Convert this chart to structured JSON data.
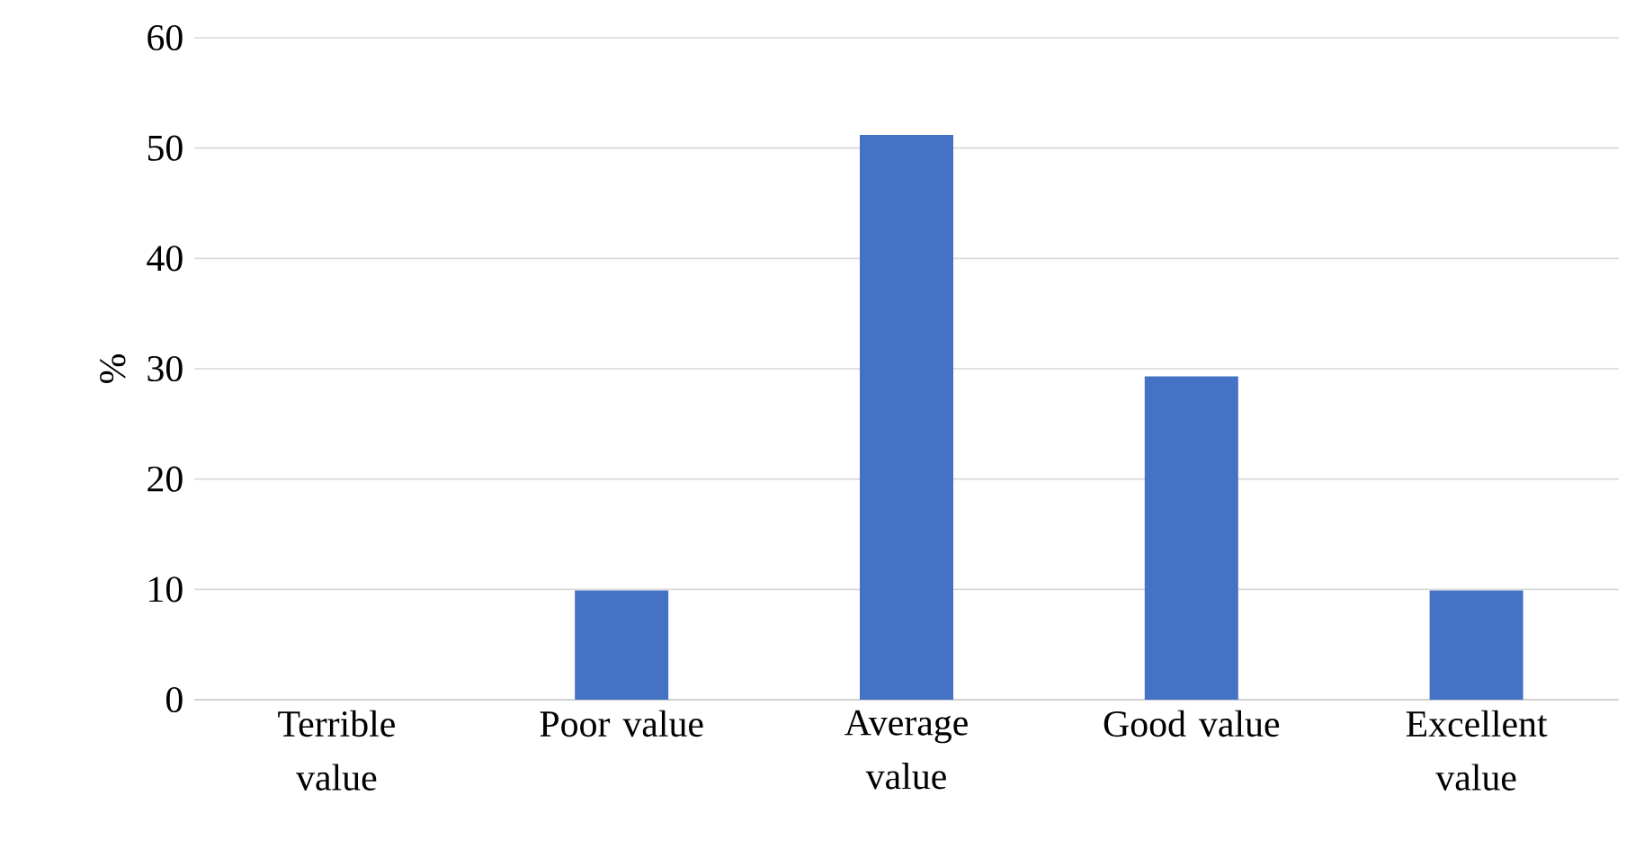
{
  "chart_data": {
    "type": "bar",
    "ylabel": "%",
    "categories": [
      "Terrible value",
      "Poor value",
      "Average value",
      "Good value",
      "Excellent value"
    ],
    "values": [
      0,
      9.9,
      51.2,
      29.3,
      9.9
    ],
    "color": "#4472c4",
    "ylim": [
      0,
      60
    ],
    "yticks": [
      0,
      10,
      20,
      30,
      40,
      50,
      60
    ],
    "grid": "y"
  }
}
